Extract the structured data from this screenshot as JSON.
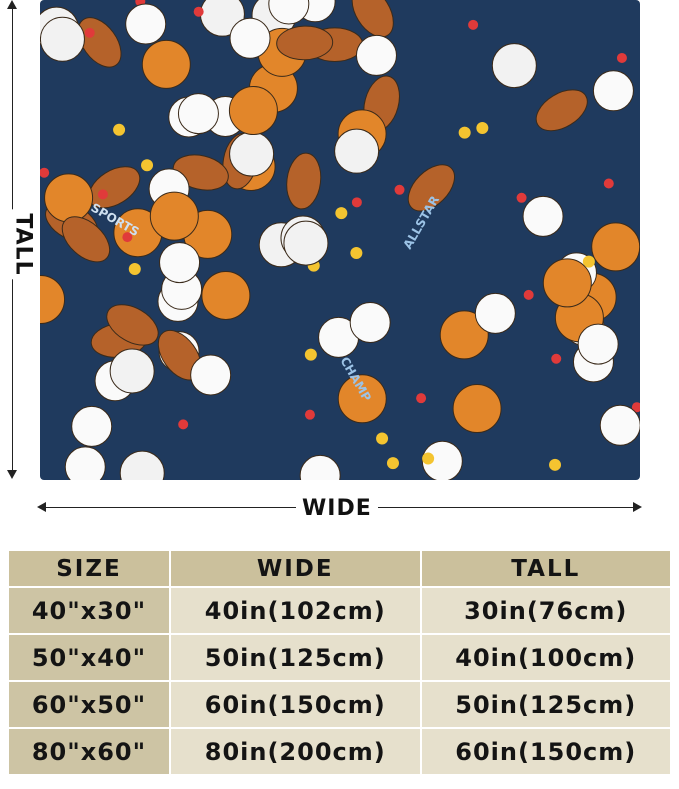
{
  "dimension_labels": {
    "tall": "TALL",
    "wide": "WIDE"
  },
  "colors": {
    "blanket_bg": "#1f3a5e",
    "header_bg": "#cbc09c",
    "size_col_bg": "#cdc4a4",
    "cell_bg": "#e6e0cc"
  },
  "blanket_text": [
    "ALLSTAR",
    "CHAMP",
    "SPORTS"
  ],
  "size_table": {
    "headers": [
      "SIZE",
      "WIDE",
      "TALL"
    ],
    "rows": [
      {
        "size": "40\"x30\"",
        "wide": "40in(102cm)",
        "tall": "30in(76cm)"
      },
      {
        "size": "50\"x40\"",
        "wide": "50in(125cm)",
        "tall": "40in(100cm)"
      },
      {
        "size": "60\"x50\"",
        "wide": "60in(150cm)",
        "tall": "50in(125cm)"
      },
      {
        "size": "80\"x60\"",
        "wide": "80in(200cm)",
        "tall": "60in(150cm)"
      }
    ]
  }
}
